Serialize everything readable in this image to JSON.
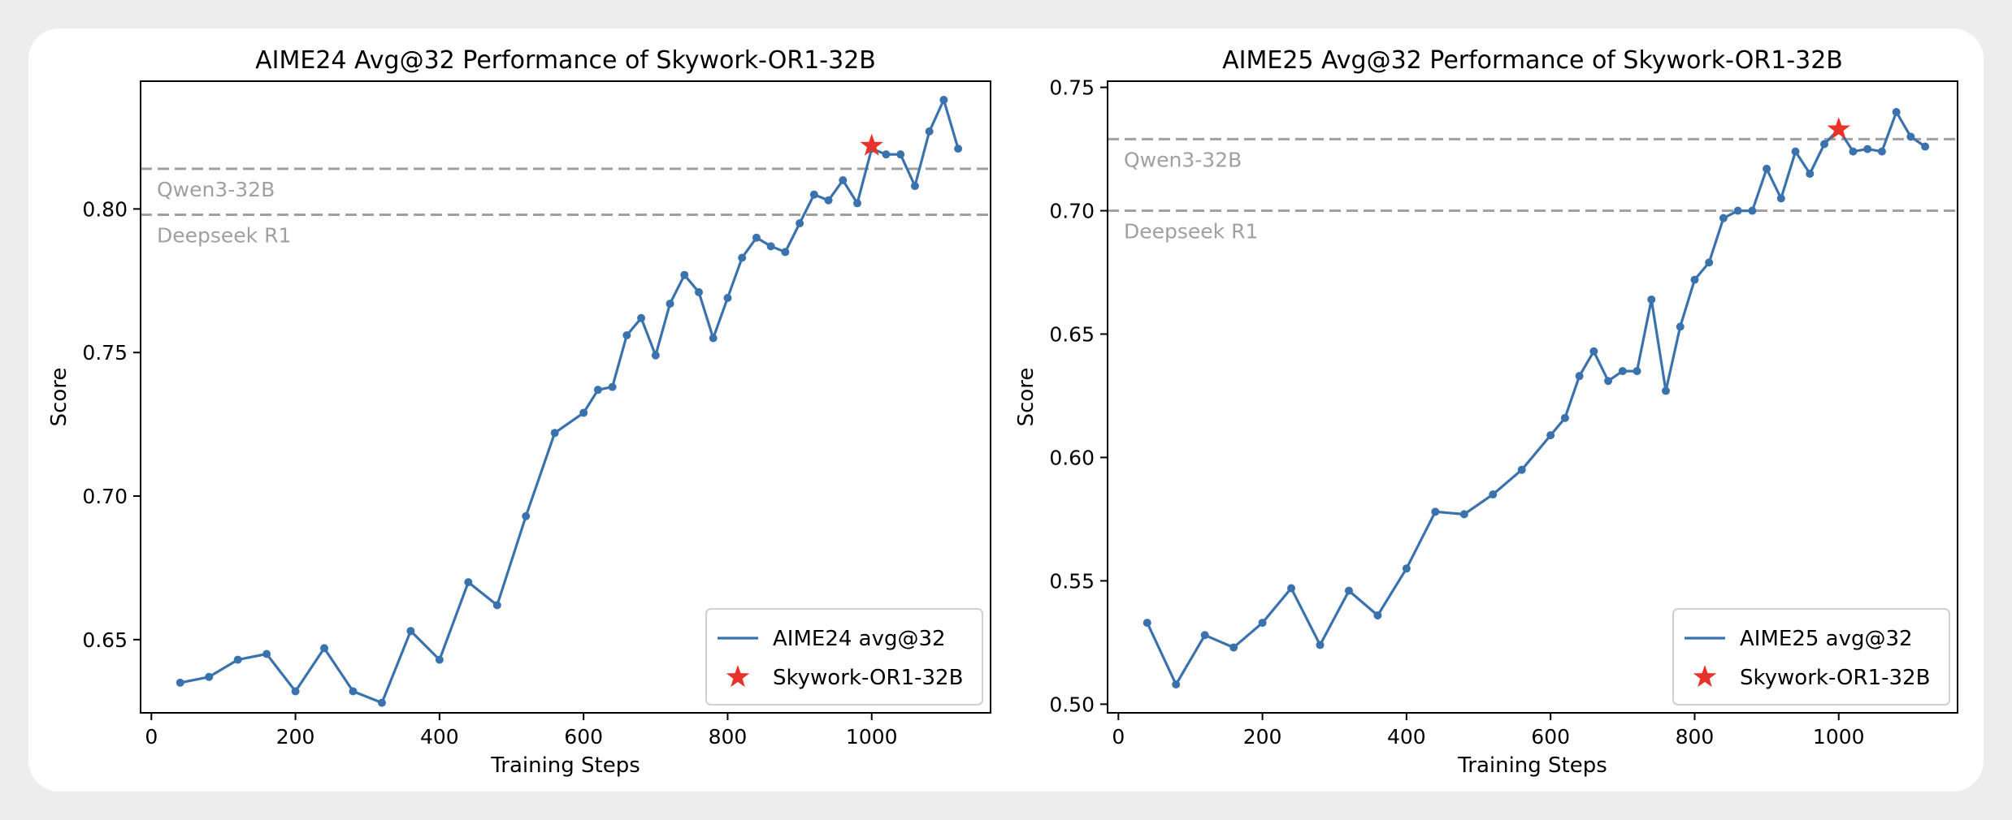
{
  "colors": {
    "series": "#3a72ae",
    "star": "#e8332a",
    "reference": "#a0a0a0",
    "axis": "#000000"
  },
  "chart_data": [
    {
      "type": "line",
      "title": "AIME24 Avg@32 Performance of Skywork-OR1-32B",
      "xlabel": "Training Steps",
      "ylabel": "Score",
      "xlim": [
        -15,
        1165
      ],
      "ylim": [
        0.6245,
        0.8445
      ],
      "xticks": [
        0,
        200,
        400,
        600,
        800,
        1000
      ],
      "yticks": [
        0.65,
        0.7,
        0.75,
        0.8
      ],
      "ytick_labels": [
        "0.65",
        "0.70",
        "0.75",
        "0.80"
      ],
      "grid": false,
      "legend_position": "lower-right",
      "reference_lines": [
        {
          "label": "Qwen3-32B",
          "y": 0.814
        },
        {
          "label": "Deepseek R1",
          "y": 0.798
        }
      ],
      "series": [
        {
          "name": "AIME24 avg@32",
          "x": [
            40,
            80,
            120,
            160,
            200,
            240,
            280,
            320,
            360,
            400,
            440,
            480,
            520,
            560,
            600,
            620,
            640,
            660,
            680,
            700,
            720,
            740,
            760,
            780,
            800,
            820,
            840,
            860,
            880,
            900,
            920,
            940,
            960,
            980,
            1000,
            1020,
            1040,
            1060,
            1080,
            1100,
            1120
          ],
          "y": [
            0.635,
            0.637,
            0.643,
            0.645,
            0.632,
            0.647,
            0.632,
            0.628,
            0.653,
            0.643,
            0.67,
            0.662,
            0.693,
            0.722,
            0.729,
            0.737,
            0.738,
            0.756,
            0.762,
            0.749,
            0.767,
            0.777,
            0.771,
            0.755,
            0.769,
            0.783,
            0.79,
            0.787,
            0.785,
            0.795,
            0.805,
            0.803,
            0.81,
            0.802,
            0.821,
            0.819,
            0.819,
            0.808,
            0.827,
            0.838,
            0.821
          ]
        }
      ],
      "highlight": {
        "name": "Skywork-OR1-32B",
        "x": 1000,
        "y": 0.822
      }
    },
    {
      "type": "line",
      "title": "AIME25 Avg@32 Performance of Skywork-OR1-32B",
      "xlabel": "Training Steps",
      "ylabel": "Score",
      "xlim": [
        -15,
        1165
      ],
      "ylim": [
        0.4965,
        0.7525
      ],
      "xticks": [
        0,
        200,
        400,
        600,
        800,
        1000
      ],
      "yticks": [
        0.5,
        0.55,
        0.6,
        0.65,
        0.7,
        0.75
      ],
      "ytick_labels": [
        "0.50",
        "0.55",
        "0.60",
        "0.65",
        "0.70",
        "0.75"
      ],
      "grid": false,
      "legend_position": "lower-right",
      "reference_lines": [
        {
          "label": "Qwen3-32B",
          "y": 0.729
        },
        {
          "label": "Deepseek R1",
          "y": 0.7
        }
      ],
      "series": [
        {
          "name": "AIME25 avg@32",
          "x": [
            40,
            80,
            120,
            160,
            200,
            240,
            280,
            320,
            360,
            400,
            440,
            480,
            520,
            560,
            600,
            620,
            640,
            660,
            680,
            700,
            720,
            740,
            760,
            780,
            800,
            820,
            840,
            860,
            880,
            900,
            920,
            940,
            960,
            980,
            1000,
            1020,
            1040,
            1060,
            1080,
            1100,
            1120
          ],
          "y": [
            0.533,
            0.508,
            0.528,
            0.523,
            0.533,
            0.547,
            0.524,
            0.546,
            0.536,
            0.555,
            0.578,
            0.577,
            0.585,
            0.595,
            0.609,
            0.616,
            0.633,
            0.643,
            0.631,
            0.635,
            0.635,
            0.664,
            0.627,
            0.653,
            0.672,
            0.679,
            0.697,
            0.7,
            0.7,
            0.717,
            0.705,
            0.724,
            0.715,
            0.727,
            0.733,
            0.724,
            0.725,
            0.724,
            0.74,
            0.73,
            0.726
          ]
        }
      ],
      "highlight": {
        "name": "Skywork-OR1-32B",
        "x": 1000,
        "y": 0.733
      }
    }
  ]
}
